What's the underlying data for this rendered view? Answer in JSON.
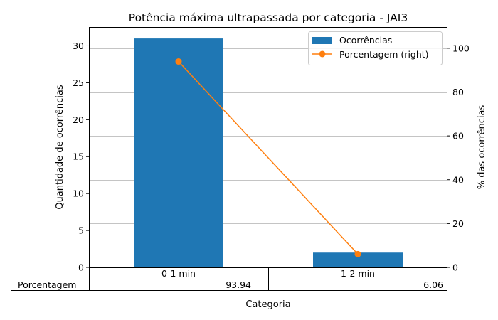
{
  "chart_data": {
    "type": "bar",
    "title": "Potência máxima ultrapassada por categoria - JAI3",
    "xlabel": "Categoria",
    "ylabel_left": "Quantidade de ocorrências",
    "ylabel_right": "% das ocorrências",
    "categories": [
      "0-1 min",
      "1-2 min"
    ],
    "ylim_left": [
      0,
      32.55
    ],
    "yticks_left": [
      0,
      5,
      10,
      15,
      20,
      25,
      30
    ],
    "ylim_right": [
      0,
      109.7
    ],
    "yticks_right": [
      0,
      20,
      40,
      60,
      80,
      100
    ],
    "grid": "horizontal (right axis)",
    "legend_position": "top-right",
    "series": [
      {
        "name": "Ocorrências",
        "kind": "bar",
        "axis": "left",
        "color": "#1f77b4",
        "values": [
          31,
          2
        ]
      },
      {
        "name": "Porcentagem (right)",
        "kind": "line",
        "axis": "right",
        "color": "#ff7f0e",
        "marker": "circle",
        "values": [
          93.94,
          6.06
        ]
      }
    ],
    "table": {
      "row_label": "Porcentagem",
      "values": [
        "93.94",
        "6.06"
      ]
    }
  }
}
